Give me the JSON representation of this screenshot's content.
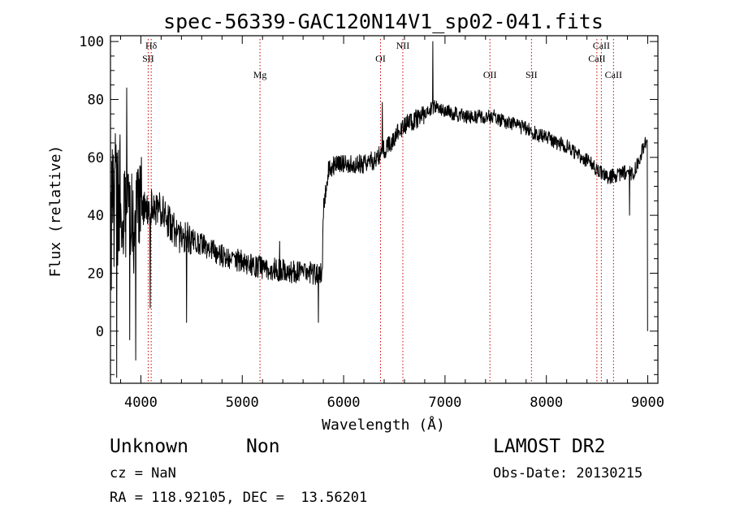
{
  "chart_data": {
    "type": "line",
    "title": "spec-56339-GAC120N14V1_sp02-041.fits",
    "xlabel": "Wavelength (Å)",
    "ylabel": "Flux (relative)",
    "xlim": [
      3700,
      9100
    ],
    "ylim": [
      -18,
      102
    ],
    "xticks": [
      4000,
      5000,
      6000,
      7000,
      8000,
      9000
    ],
    "yticks": [
      0,
      20,
      40,
      60,
      80,
      100
    ],
    "grid": false,
    "line_color": "#000000",
    "marker_line_color": "#cc0000",
    "anchors": {
      "x": [
        3700,
        3720,
        3760,
        3800,
        3850,
        3900,
        3950,
        4000,
        4050,
        4100,
        4150,
        4200,
        4300,
        4400,
        4500,
        4600,
        4800,
        5000,
        5200,
        5400,
        5600,
        5700,
        5760,
        5790,
        5800,
        5850,
        5900,
        6000,
        6100,
        6200,
        6300,
        6380,
        6450,
        6500,
        6600,
        6700,
        6800,
        6870,
        6900,
        7000,
        7100,
        7200,
        7300,
        7400,
        7500,
        7600,
        7700,
        7800,
        7900,
        8000,
        8100,
        8200,
        8300,
        8400,
        8500,
        8550,
        8600,
        8700,
        8800,
        8850,
        8900,
        8950,
        9000
      ],
      "y": [
        36,
        40,
        45,
        42,
        40,
        38,
        40,
        42,
        42,
        43,
        42,
        42,
        36,
        32,
        32,
        30,
        26,
        24,
        22,
        21,
        20,
        20,
        20,
        21,
        42,
        56,
        57,
        58,
        58,
        58,
        59,
        62,
        64,
        67,
        71,
        73,
        75,
        77,
        78,
        76,
        75,
        74,
        74,
        74,
        74,
        72,
        71,
        70,
        68,
        67,
        65,
        64,
        61,
        59,
        56,
        54,
        53,
        54,
        55,
        54,
        58,
        63,
        66
      ]
    },
    "noise": [
      {
        "from": 3700,
        "to": 3800,
        "amp": 26
      },
      {
        "from": 3800,
        "to": 4000,
        "amp": 16
      },
      {
        "from": 4000,
        "to": 4500,
        "amp": 6
      },
      {
        "from": 4500,
        "to": 5800,
        "amp": 4
      },
      {
        "from": 5800,
        "to": 6800,
        "amp": 3.5
      },
      {
        "from": 6800,
        "to": 9000,
        "amp": 2.5
      }
    ],
    "spikes": [
      {
        "x": 3760,
        "y": -16
      },
      {
        "x": 3790,
        "y": 62
      },
      {
        "x": 3830,
        "y": 30
      },
      {
        "x": 3860,
        "y": 84
      },
      {
        "x": 3890,
        "y": -3
      },
      {
        "x": 3930,
        "y": 20
      },
      {
        "x": 3950,
        "y": -10
      },
      {
        "x": 4005,
        "y": 60
      },
      {
        "x": 4090,
        "y": 8
      },
      {
        "x": 4450,
        "y": 3
      },
      {
        "x": 5020,
        "y": 22
      },
      {
        "x": 5370,
        "y": 31
      },
      {
        "x": 5750,
        "y": 3
      },
      {
        "x": 6380,
        "y": 79
      },
      {
        "x": 6880,
        "y": 100
      },
      {
        "x": 8820,
        "y": 40
      },
      {
        "x": 9000,
        "y": 0
      }
    ],
    "lines": [
      {
        "label": "Hδ",
        "x": 4102,
        "row": 0
      },
      {
        "label": "SII",
        "x": 4072,
        "row": 1
      },
      {
        "label": "Mg",
        "x": 5175,
        "row": 3
      },
      {
        "label": "OI",
        "x": 6364,
        "row": 2
      },
      {
        "label": "NII",
        "x": 6584,
        "row": 0
      },
      {
        "label": "OII",
        "x": 7443,
        "row": 3
      },
      {
        "label": "SII",
        "x": 7853,
        "row": 3
      },
      {
        "label": "CaII",
        "x": 8542,
        "row": 0
      },
      {
        "label": "CaII",
        "x": 8498,
        "row": 2
      },
      {
        "label": "CaII",
        "x": 8662,
        "row": 3
      }
    ]
  },
  "info": {
    "class": "Unknown",
    "subclass": "Non",
    "survey": "LAMOST DR2",
    "cz": "cz = NaN",
    "obs_date": "Obs-Date: 20130215",
    "coords": "RA = 118.92105, DEC =  13.56201"
  }
}
